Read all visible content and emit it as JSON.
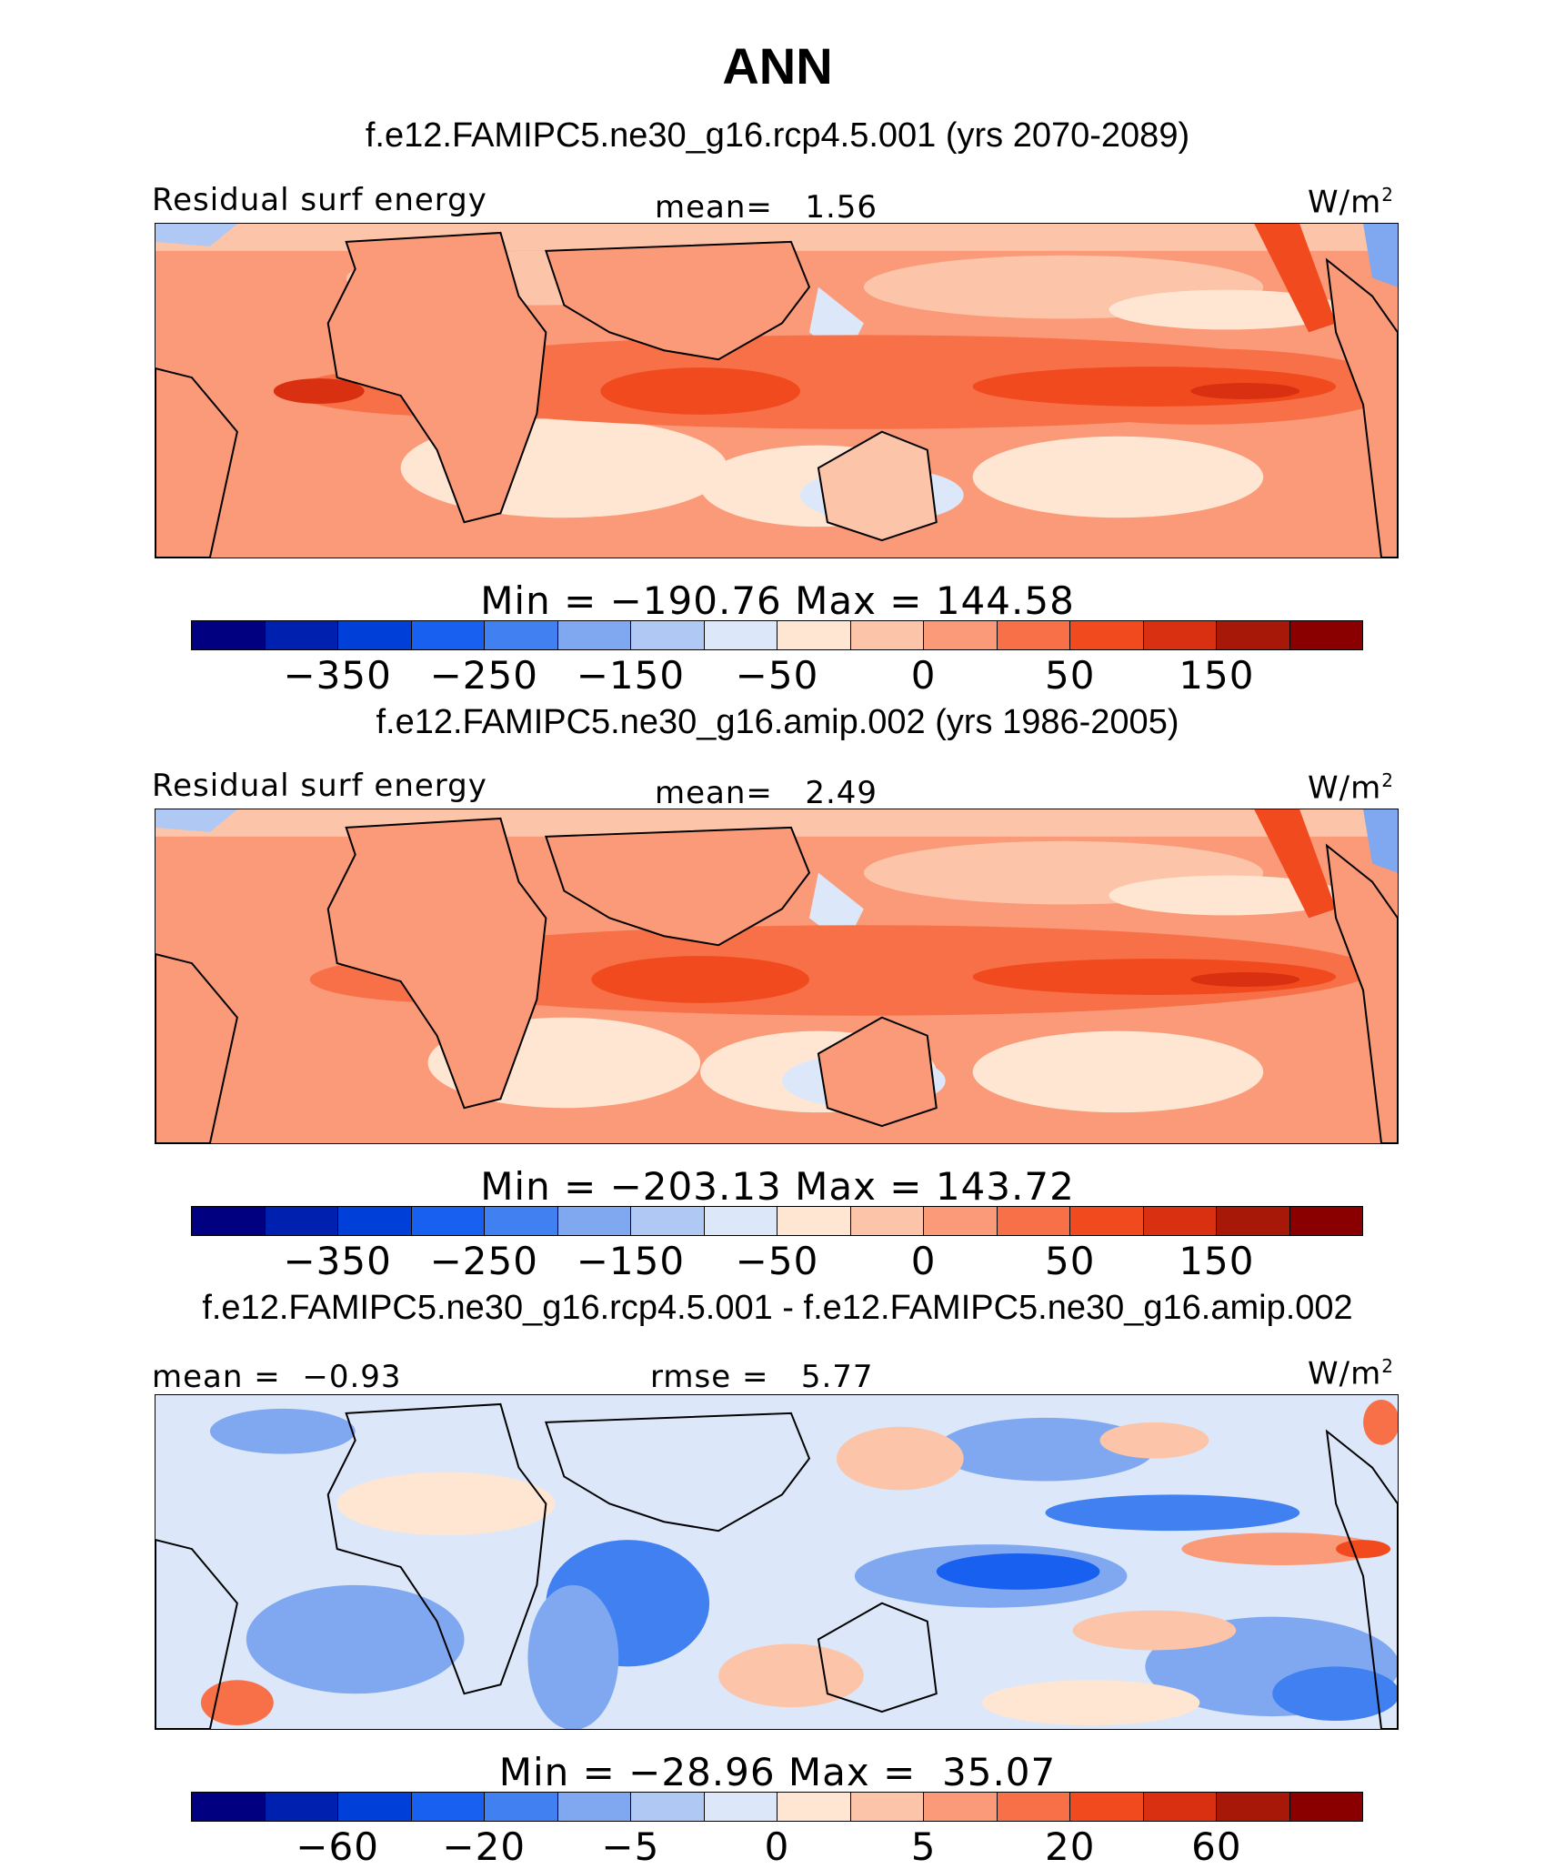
{
  "title": "ANN",
  "units": "W/m",
  "units_superscript": "2",
  "colors": {
    "main_scale": [
      "#000080",
      "#0020b0",
      "#0040d8",
      "#1860f0",
      "#4080f0",
      "#80a8f0",
      "#b0c8f4",
      "#dce8fa",
      "#fee6d2",
      "#fcc4a8",
      "#fa9a78",
      "#f87048",
      "#f04a1e",
      "#d83010",
      "#a81808",
      "#8a0000"
    ],
    "diff_scale": [
      "#000080",
      "#0020b0",
      "#0040d8",
      "#1860f0",
      "#4080f0",
      "#80a8f0",
      "#b0c8f4",
      "#dce8fa",
      "#fee6d2",
      "#fcc4a8",
      "#fa9a78",
      "#f87048",
      "#f04a1e",
      "#d83010",
      "#a81808",
      "#8a0000"
    ],
    "land_outline": "#000000"
  },
  "panels": [
    {
      "subtitle": "f.e12.FAMIPC5.ne30_g16.rcp4.5.001 (yrs 2070-2089)",
      "left_label": "Residual surf energy",
      "center_label": "mean=   1.56",
      "units": "W/m",
      "min_max": "Min = −190.76 Max = 144.58",
      "ticks": [
        "−350",
        "−250",
        "−150",
        "−50",
        "0",
        "50",
        "150"
      ],
      "mean": 1.56,
      "min": -190.76,
      "max": 144.58
    },
    {
      "subtitle": "f.e12.FAMIPC5.ne30_g16.amip.002 (yrs 1986-2005)",
      "left_label": "Residual surf energy",
      "center_label": "mean=   2.49",
      "units": "W/m",
      "min_max": "Min = −203.13 Max = 143.72",
      "ticks": [
        "−350",
        "−250",
        "−150",
        "−50",
        "0",
        "50",
        "150"
      ],
      "mean": 2.49,
      "min": -203.13,
      "max": 143.72
    },
    {
      "subtitle": "f.e12.FAMIPC5.ne30_g16.rcp4.5.001 - f.e12.FAMIPC5.ne30_g16.amip.002",
      "left_label": "mean =  −0.93",
      "center_label": "rmse =   5.77",
      "units": "W/m",
      "min_max": "Min = −28.96 Max =  35.07",
      "ticks": [
        "−60",
        "−20",
        "−5",
        "0",
        "5",
        "20",
        "60"
      ],
      "mean": -0.93,
      "rmse": 5.77,
      "min": -28.96,
      "max": 35.07
    }
  ]
}
